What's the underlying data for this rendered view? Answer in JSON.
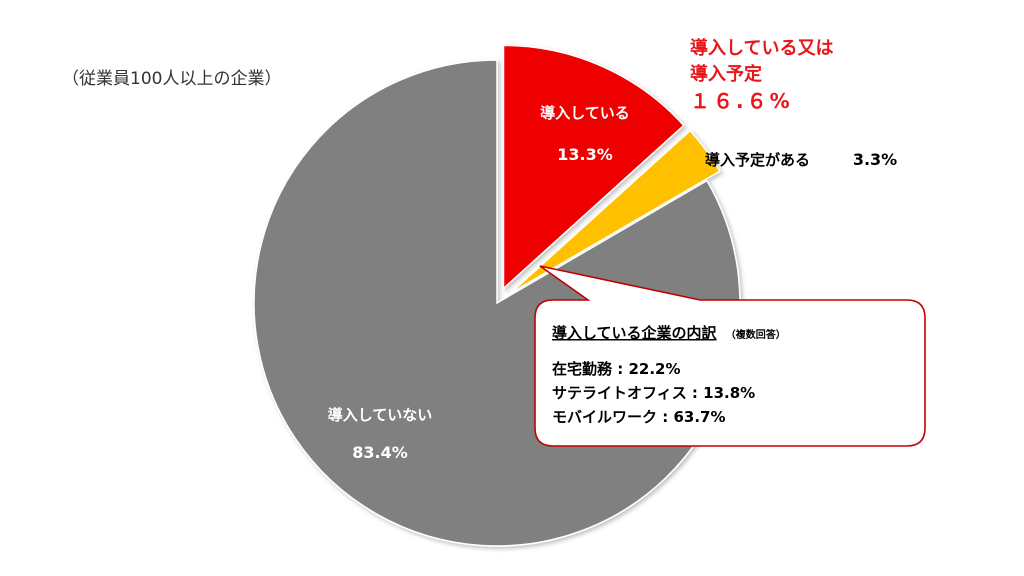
{
  "subtitle": "（従業員100人以上の企業）",
  "chart_data": {
    "type": "pie",
    "slices": [
      {
        "label": "導入している",
        "value": 13.3,
        "value_label": "13.3%",
        "color": "#ee0000",
        "exploded": true
      },
      {
        "label": "導入予定がある",
        "value": 3.3,
        "value_label": "3.3%",
        "color": "#ffc000",
        "exploded": true
      },
      {
        "label": "導入していない",
        "value": 83.4,
        "value_label": "83.4%",
        "color": "#808080",
        "exploded": false
      }
    ],
    "group_callout": {
      "line1": "導入している又は",
      "line2": "導入予定",
      "value": "１６.６%"
    },
    "breakdown": {
      "title": "導入している企業の内訳",
      "note": "（複数回答）",
      "items": [
        {
          "label": "在宅勤務",
          "value": "22.2%"
        },
        {
          "label": "サテライトオフィス",
          "value": "13.8%"
        },
        {
          "label": "モバイルワーク",
          "value": "63.7%"
        }
      ]
    }
  }
}
